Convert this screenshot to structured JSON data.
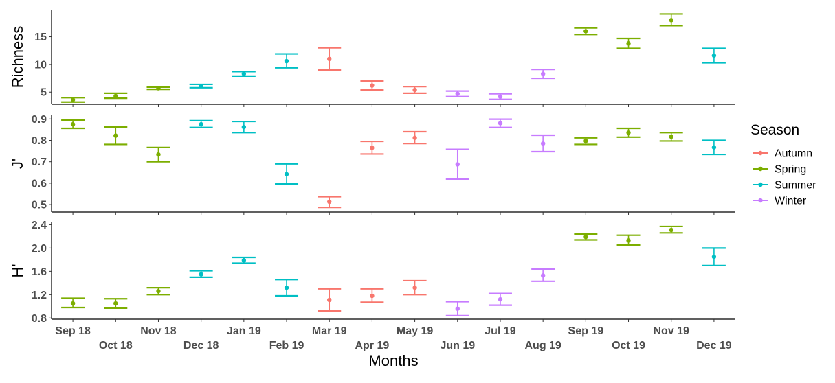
{
  "chart_data": {
    "type": "errorbar",
    "categories": [
      "Sep 18",
      "Oct 18",
      "Nov 18",
      "Dec 18",
      "Jan 19",
      "Feb 19",
      "Mar 19",
      "Apr 19",
      "May 19",
      "Jun 19",
      "Jul 19",
      "Aug 19",
      "Sep 19",
      "Oct 19",
      "Nov 19",
      "Dec 19"
    ],
    "season_of_month": [
      "Spring",
      "Spring",
      "Spring",
      "Summer",
      "Summer",
      "Summer",
      "Autumn",
      "Autumn",
      "Autumn",
      "Winter",
      "Winter",
      "Winter",
      "Spring",
      "Spring",
      "Spring",
      "Summer"
    ],
    "xlabel": "Months",
    "legend": {
      "title": "Season",
      "placement": "right",
      "entries": [
        {
          "name": "Autumn",
          "color": "#F8766D"
        },
        {
          "name": "Spring",
          "color": "#7CAE00"
        },
        {
          "name": "Summer",
          "color": "#00BFC4"
        },
        {
          "name": "Winter",
          "color": "#C77CFF"
        }
      ]
    },
    "panels": [
      {
        "ylabel": "Richness",
        "ylim": [
          2.8,
          19.9
        ],
        "yticks": [
          5,
          10,
          15
        ],
        "ytick_labels": [
          "5",
          "10",
          "15"
        ],
        "means": [
          3.6,
          4.3,
          5.7,
          6.1,
          8.3,
          10.6,
          11.0,
          6.2,
          5.4,
          4.7,
          4.2,
          8.3,
          16.0,
          13.8,
          18.0,
          11.6
        ],
        "lower": [
          3.2,
          3.9,
          5.5,
          5.8,
          7.9,
          9.4,
          9.0,
          5.4,
          4.8,
          4.2,
          3.7,
          7.5,
          15.4,
          12.9,
          17.0,
          10.3
        ],
        "upper": [
          4.0,
          4.8,
          5.9,
          6.4,
          8.7,
          11.9,
          13.0,
          7.0,
          6.0,
          5.2,
          4.7,
          9.1,
          16.6,
          14.7,
          19.1,
          12.9
        ]
      },
      {
        "ylabel": "J'",
        "ylim": [
          0.465,
          0.917
        ],
        "yticks": [
          0.5,
          0.6,
          0.7,
          0.8,
          0.9
        ],
        "ytick_labels": [
          "0.5",
          "0.6",
          "0.7",
          "0.8",
          "0.9"
        ],
        "means": [
          0.875,
          0.822,
          0.734,
          0.875,
          0.862,
          0.642,
          0.513,
          0.765,
          0.812,
          0.688,
          0.88,
          0.785,
          0.797,
          0.836,
          0.817,
          0.767
        ],
        "lower": [
          0.856,
          0.781,
          0.7,
          0.86,
          0.836,
          0.596,
          0.487,
          0.736,
          0.785,
          0.619,
          0.86,
          0.747,
          0.781,
          0.815,
          0.797,
          0.734
        ],
        "upper": [
          0.895,
          0.862,
          0.767,
          0.892,
          0.888,
          0.69,
          0.537,
          0.795,
          0.84,
          0.758,
          0.899,
          0.824,
          0.812,
          0.856,
          0.836,
          0.8
        ]
      },
      {
        "ylabel": "H'",
        "ylim": [
          0.78,
          2.44
        ],
        "yticks": [
          0.8,
          1.2,
          1.6,
          2.0,
          2.4
        ],
        "ytick_labels": [
          "0.8",
          "1.2",
          "1.6",
          "2.0",
          "2.4"
        ],
        "means": [
          1.05,
          1.05,
          1.26,
          1.55,
          1.79,
          1.32,
          1.11,
          1.18,
          1.32,
          0.96,
          1.12,
          1.53,
          2.19,
          2.13,
          2.31,
          1.85
        ],
        "lower": [
          0.98,
          0.97,
          1.2,
          1.5,
          1.74,
          1.18,
          0.92,
          1.07,
          1.2,
          0.84,
          1.02,
          1.43,
          2.14,
          2.05,
          2.26,
          1.7
        ],
        "upper": [
          1.14,
          1.13,
          1.32,
          1.61,
          1.84,
          1.46,
          1.3,
          1.3,
          1.44,
          1.08,
          1.22,
          1.64,
          2.24,
          2.22,
          2.37,
          2.0
        ]
      }
    ]
  }
}
